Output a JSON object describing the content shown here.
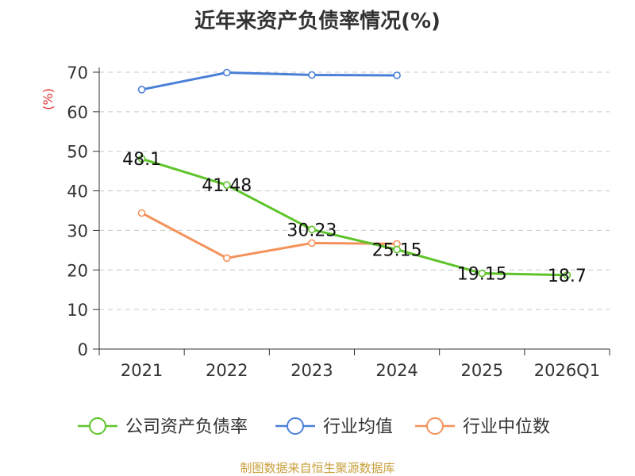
{
  "chart_data": {
    "type": "line",
    "title": "近年来资产负债率情况(%)",
    "ylabel": "(%)",
    "categories": [
      "2021",
      "2022",
      "2023",
      "2024",
      "2025",
      "2026Q1"
    ],
    "ylim": [
      0,
      70
    ],
    "yticks": [
      0,
      10,
      20,
      30,
      40,
      50,
      60,
      70
    ],
    "grid": true,
    "legend_position": "bottom",
    "series": [
      {
        "name": "公司资产负债率",
        "color": "#5ec42a",
        "values": [
          48.1,
          41.48,
          30.23,
          25.15,
          19.15,
          18.7
        ],
        "labels": [
          "48.1",
          "41.48",
          "30.23",
          "25.15",
          "19.15",
          "18.7"
        ]
      },
      {
        "name": "行业均值",
        "color": "#4a7fd8",
        "values": [
          65.6,
          69.9,
          69.3,
          69.2,
          null,
          null
        ]
      },
      {
        "name": "行业中位数",
        "color": "#f4925b",
        "values": [
          34.4,
          23.0,
          26.8,
          26.6,
          null,
          null
        ]
      }
    ]
  },
  "source": "制图数据来自恒生聚源数据库"
}
